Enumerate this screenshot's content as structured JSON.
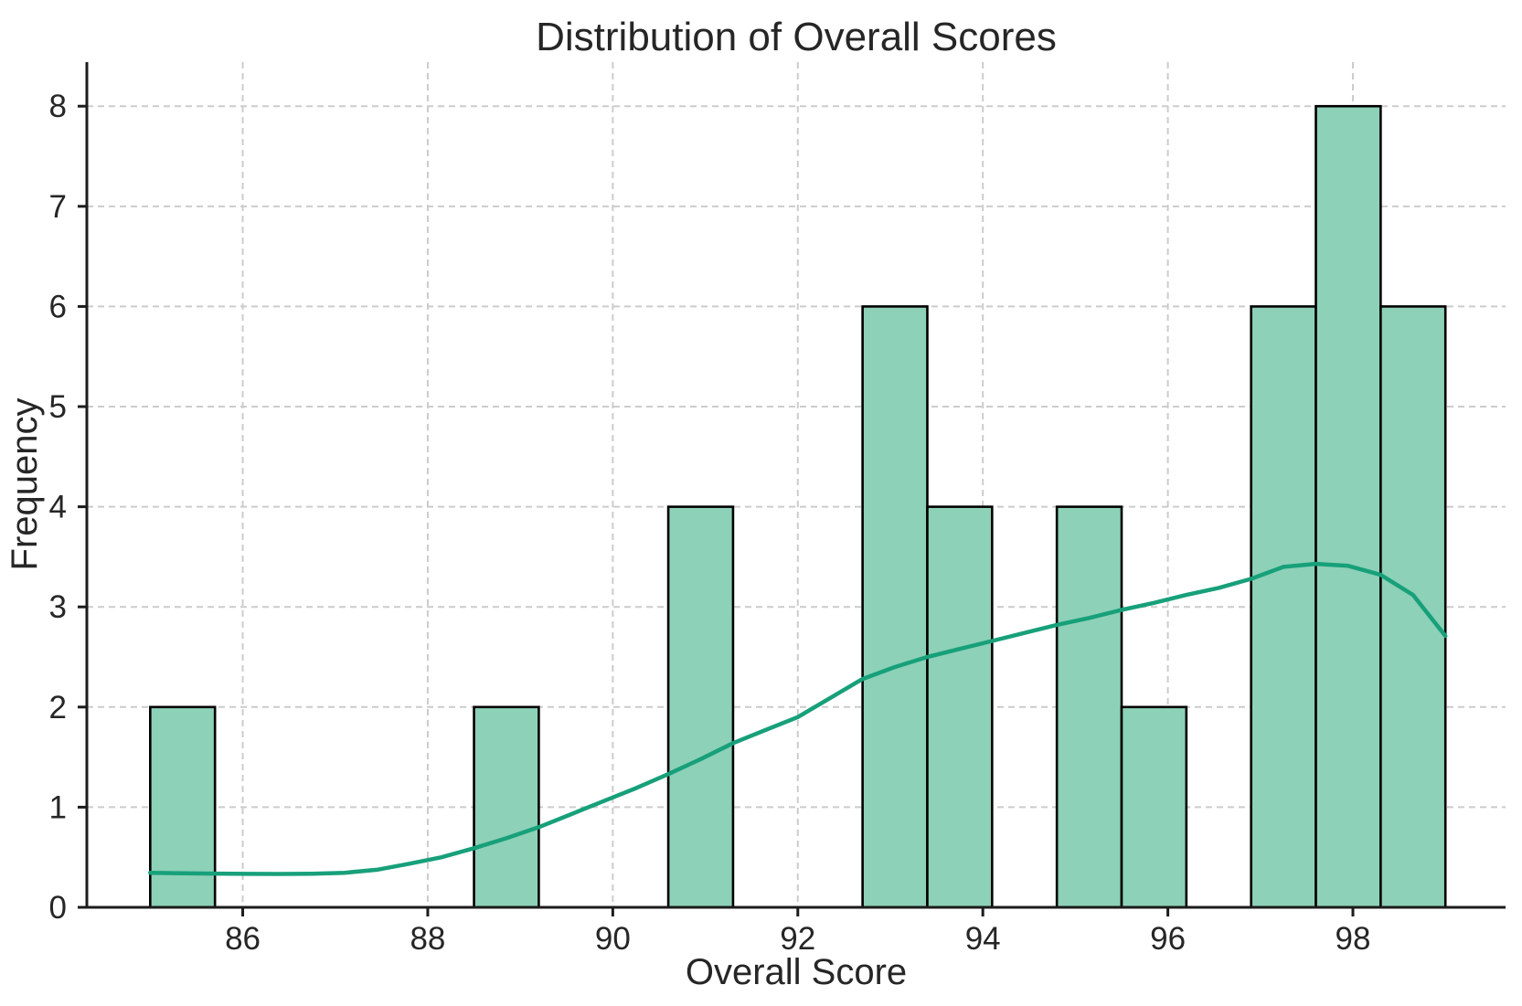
{
  "chart_data": {
    "type": "bar",
    "subtype": "histogram-with-kde",
    "title": "Distribution of Overall Scores",
    "xlabel": "Overall Score",
    "ylabel": "Frequency",
    "xlim": [
      84.315,
      99.65
    ],
    "ylim": [
      0,
      8.44
    ],
    "xticks": [
      86,
      88,
      90,
      92,
      94,
      96,
      98
    ],
    "yticks": [
      0,
      1,
      2,
      3,
      4,
      5,
      6,
      7,
      8
    ],
    "grid": true,
    "legend": "none",
    "bin_width": 0.7,
    "bin_edges": [
      85.0,
      85.7,
      86.4,
      87.1,
      87.8,
      88.5,
      89.2,
      89.9,
      90.6,
      91.3,
      92.0,
      92.7,
      93.4,
      94.1,
      94.8,
      95.5,
      96.2,
      96.9,
      97.6,
      98.3,
      99.0
    ],
    "counts": [
      2,
      0,
      0,
      0,
      0,
      2,
      0,
      0,
      4,
      0,
      0,
      6,
      4,
      0,
      4,
      2,
      0,
      6,
      8,
      6
    ],
    "kde_points": [
      [
        85.0,
        0.345
      ],
      [
        85.35,
        0.34
      ],
      [
        85.7,
        0.337
      ],
      [
        86.05,
        0.334
      ],
      [
        86.4,
        0.333
      ],
      [
        86.75,
        0.336
      ],
      [
        87.1,
        0.345
      ],
      [
        87.45,
        0.375
      ],
      [
        87.8,
        0.435
      ],
      [
        88.15,
        0.5
      ],
      [
        88.5,
        0.59
      ],
      [
        88.85,
        0.69
      ],
      [
        89.2,
        0.8
      ],
      [
        89.55,
        0.93
      ],
      [
        89.9,
        1.06
      ],
      [
        90.25,
        1.19
      ],
      [
        90.6,
        1.33
      ],
      [
        90.95,
        1.48
      ],
      [
        91.3,
        1.64
      ],
      [
        91.65,
        1.77
      ],
      [
        92.0,
        1.9
      ],
      [
        92.35,
        2.09
      ],
      [
        92.7,
        2.28
      ],
      [
        93.05,
        2.4
      ],
      [
        93.4,
        2.5
      ],
      [
        93.75,
        2.58
      ],
      [
        94.1,
        2.66
      ],
      [
        94.45,
        2.74
      ],
      [
        94.8,
        2.82
      ],
      [
        95.15,
        2.89
      ],
      [
        95.5,
        2.97
      ],
      [
        95.85,
        3.04
      ],
      [
        96.2,
        3.12
      ],
      [
        96.55,
        3.19
      ],
      [
        96.9,
        3.28
      ],
      [
        97.25,
        3.4
      ],
      [
        97.6,
        3.43
      ],
      [
        97.95,
        3.41
      ],
      [
        98.3,
        3.32
      ],
      [
        98.65,
        3.12
      ],
      [
        99.0,
        2.71
      ]
    ],
    "colors": {
      "bar_fill": "#8dd1b8",
      "bar_edge": "#000000",
      "kde_line": "#17a07a",
      "grid": "#cccccc",
      "text": "#262626",
      "spine": "#1c1c1c",
      "background": "#ffffff"
    }
  }
}
